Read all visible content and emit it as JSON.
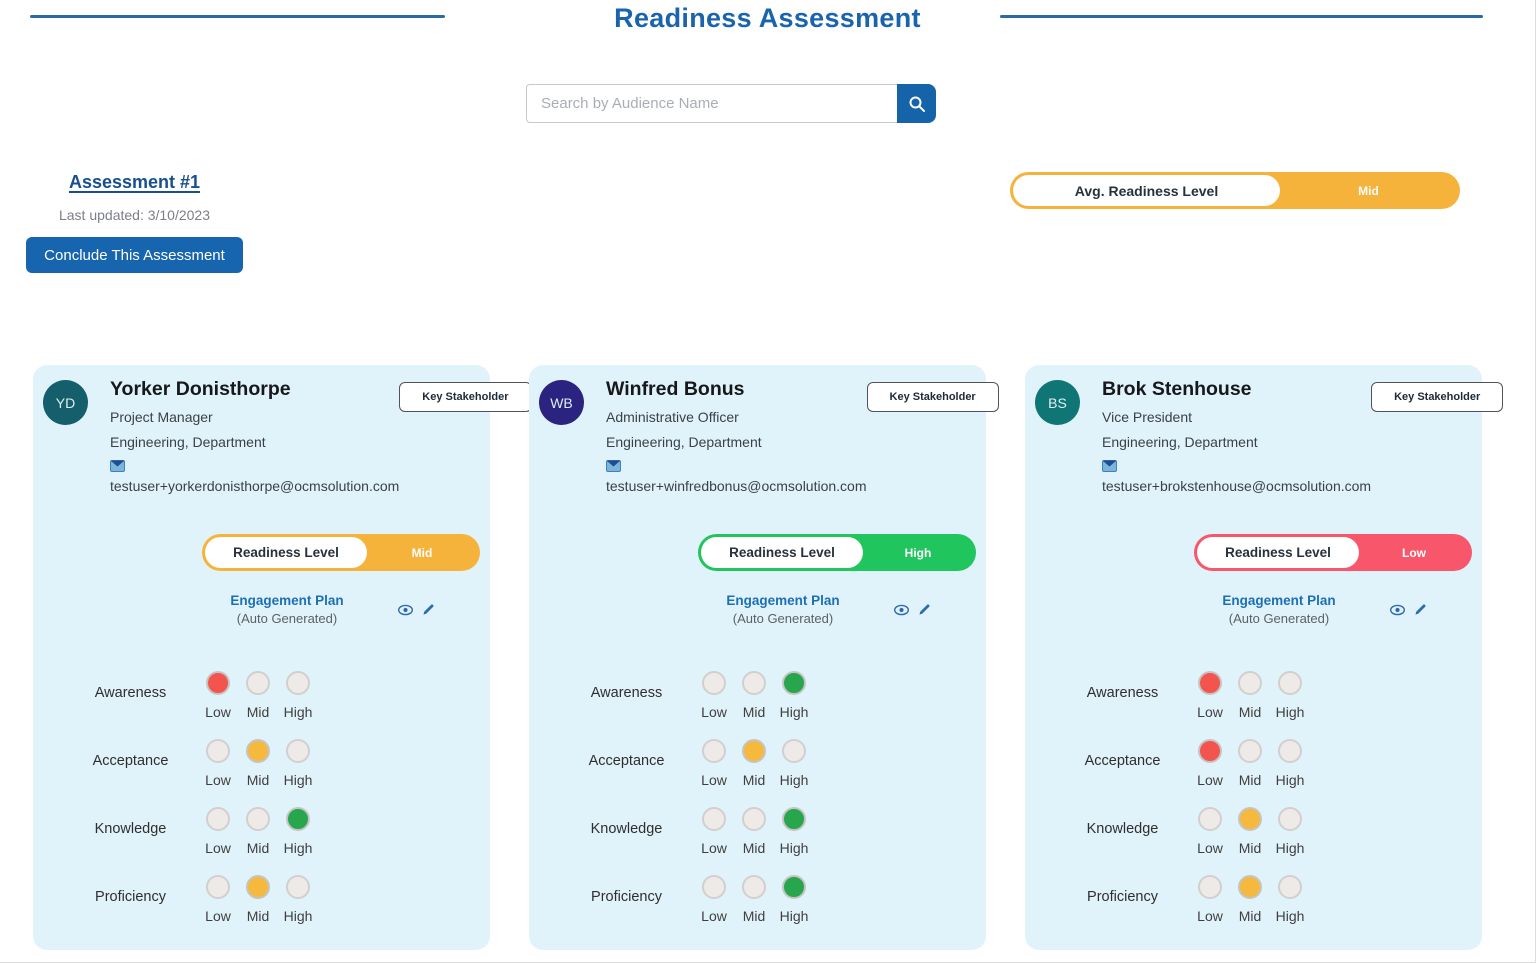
{
  "page": {
    "title": "Readiness Assessment",
    "search": {
      "placeholder": "Search by Audience Name"
    },
    "assessment": {
      "name": "Assessment #1",
      "last_updated": "Last updated: 3/10/2023",
      "conclude_button": "Conclude This Assessment",
      "avg_readiness": {
        "label": "Avg. Readiness Level",
        "value": "Mid",
        "color": "#F6B33C"
      }
    }
  },
  "rating_scale": [
    "Low",
    "Mid",
    "High"
  ],
  "colors": {
    "title_blue": "#1A64AE",
    "line_blue": "#2B6BA5",
    "button_blue": "#1765AE",
    "search_button_blue": "#1563A8",
    "link_blue": "#174F8F",
    "icon_blue": "#2B6CB0",
    "card_bg": "#E1F3FA",
    "pill_mid": "#F6B33C",
    "pill_high": "#20C55E",
    "pill_low": "#F8566B",
    "dot_low": "#F4544E",
    "dot_mid": "#F5B93D",
    "dot_high": "#27A64E"
  },
  "cards": [
    {
      "initials": "YD",
      "avatar_color": "#155E6B",
      "name": "Yorker Donisthorpe",
      "job_title": "Project Manager",
      "department": "Engineering, Department",
      "email": "testuser+yorkerdonisthorpe@ocmsolution.com",
      "badge": "Key Stakeholder",
      "readiness": {
        "label": "Readiness Level",
        "value": "Mid",
        "color": "#F6B33C"
      },
      "engagement_plan": {
        "title": "Engagement Plan",
        "subtitle": "(Auto Generated)"
      },
      "ratings": [
        {
          "category": "Awareness",
          "selected": "Low"
        },
        {
          "category": "Acceptance",
          "selected": "Mid"
        },
        {
          "category": "Knowledge",
          "selected": "High"
        },
        {
          "category": "Proficiency",
          "selected": "Mid"
        }
      ]
    },
    {
      "initials": "WB",
      "avatar_color": "#2A2380",
      "name": "Winfred Bonus",
      "job_title": "Administrative Officer",
      "department": "Engineering, Department",
      "email": "testuser+winfredbonus@ocmsolution.com",
      "badge": "Key Stakeholder",
      "readiness": {
        "label": "Readiness Level",
        "value": "High",
        "color": "#20C55E"
      },
      "engagement_plan": {
        "title": "Engagement Plan",
        "subtitle": "(Auto Generated)"
      },
      "ratings": [
        {
          "category": "Awareness",
          "selected": "High"
        },
        {
          "category": "Acceptance",
          "selected": "Mid"
        },
        {
          "category": "Knowledge",
          "selected": "High"
        },
        {
          "category": "Proficiency",
          "selected": "High"
        }
      ]
    },
    {
      "initials": "BS",
      "avatar_color": "#0F7575",
      "name": "Brok Stenhouse",
      "job_title": "Vice President",
      "department": "Engineering, Department",
      "email": "testuser+brokstenhouse@ocmsolution.com",
      "badge": "Key Stakeholder",
      "readiness": {
        "label": "Readiness Level",
        "value": "Low",
        "color": "#F8566B"
      },
      "engagement_plan": {
        "title": "Engagement Plan",
        "subtitle": "(Auto Generated)"
      },
      "ratings": [
        {
          "category": "Awareness",
          "selected": "Low"
        },
        {
          "category": "Acceptance",
          "selected": "Low"
        },
        {
          "category": "Knowledge",
          "selected": "Mid"
        },
        {
          "category": "Proficiency",
          "selected": "Mid"
        }
      ]
    }
  ]
}
